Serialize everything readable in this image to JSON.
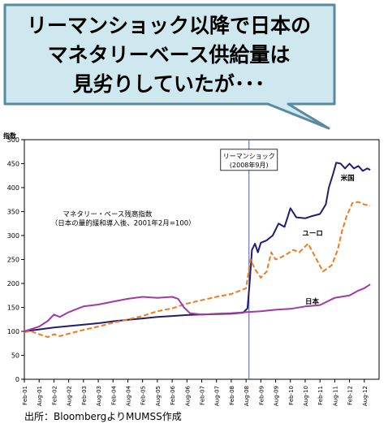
{
  "headline": {
    "line1": "リーマンショック以降で日本の",
    "line2": "マネタリーベース供給量は",
    "line3": "見劣りしていたが･･･"
  },
  "source": "出所：BloombergよりMUMSS作成",
  "colors": {
    "callout_fill": "#cfe7ef",
    "callout_stroke": "#5a8aa0",
    "us": "#1f1f6e",
    "euro": "#f27a1a",
    "japan": "#a23aa6"
  },
  "chart_data": {
    "type": "line",
    "ylabel": "指数",
    "ylim": [
      0,
      500
    ],
    "yticks": [
      0,
      50,
      100,
      150,
      200,
      250,
      300,
      350,
      400,
      450,
      500
    ],
    "x_tick_labels": [
      "Feb-01",
      "Aug-01",
      "Feb-02",
      "Aug-02",
      "Feb-03",
      "Aug-03",
      "Feb-04",
      "Aug-04",
      "Feb-05",
      "Aug-05",
      "Feb-06",
      "Aug-06",
      "Feb-07",
      "Aug-07",
      "Feb-08",
      "Aug-08",
      "Feb-09",
      "Aug-09",
      "Feb-10",
      "Aug-10",
      "Feb-11",
      "Aug-11",
      "Feb-12",
      "Aug-12"
    ],
    "annotation_title": "マネタリー・ベース残高指数",
    "annotation_subtitle": "（日本の量的緩和導入後、2001年2月=100）",
    "event": {
      "label_line1": "リーマンショック",
      "label_line2": "(2008年9月)",
      "x": 7.6
    },
    "series": [
      {
        "name": "米国",
        "style": "solid",
        "color": "#1f1f6e",
        "points": [
          [
            0,
            100
          ],
          [
            0.5,
            104
          ],
          [
            1,
            108
          ],
          [
            1.5,
            111
          ],
          [
            2,
            114
          ],
          [
            2.5,
            117
          ],
          [
            3,
            121
          ],
          [
            3.5,
            124
          ],
          [
            4,
            127
          ],
          [
            4.5,
            130
          ],
          [
            5,
            132
          ],
          [
            5.5,
            134
          ],
          [
            6,
            135
          ],
          [
            6.5,
            136
          ],
          [
            7,
            137
          ],
          [
            7.4,
            139
          ],
          [
            7.55,
            148
          ],
          [
            7.62,
            200
          ],
          [
            7.7,
            270
          ],
          [
            7.8,
            283
          ],
          [
            7.9,
            265
          ],
          [
            8,
            285
          ],
          [
            8.2,
            290
          ],
          [
            8.4,
            300
          ],
          [
            8.6,
            325
          ],
          [
            8.8,
            318
          ],
          [
            9,
            357
          ],
          [
            9.2,
            338
          ],
          [
            9.5,
            336
          ],
          [
            9.7,
            340
          ],
          [
            10,
            345
          ],
          [
            10.2,
            365
          ],
          [
            10.3,
            400
          ],
          [
            10.45,
            430
          ],
          [
            10.55,
            452
          ],
          [
            10.7,
            450
          ],
          [
            10.85,
            440
          ],
          [
            11,
            450
          ],
          [
            11.15,
            440
          ],
          [
            11.3,
            445
          ],
          [
            11.45,
            435
          ],
          [
            11.6,
            440
          ],
          [
            11.7,
            437
          ]
        ]
      },
      {
        "name": "ユーロ",
        "style": "dashed",
        "color": "#f27a1a",
        "points": [
          [
            0,
            98
          ],
          [
            0.2,
            101
          ],
          [
            0.4,
            96
          ],
          [
            0.6,
            92
          ],
          [
            0.8,
            88
          ],
          [
            1,
            94
          ],
          [
            1.2,
            90
          ],
          [
            1.5,
            95
          ],
          [
            2,
            103
          ],
          [
            2.5,
            110
          ],
          [
            3,
            118
          ],
          [
            3.5,
            125
          ],
          [
            4,
            132
          ],
          [
            4.5,
            142
          ],
          [
            5,
            148
          ],
          [
            5.5,
            158
          ],
          [
            6,
            165
          ],
          [
            6.5,
            172
          ],
          [
            7,
            178
          ],
          [
            7.3,
            185
          ],
          [
            7.5,
            190
          ],
          [
            7.65,
            250
          ],
          [
            7.8,
            230
          ],
          [
            8,
            212
          ],
          [
            8.2,
            225
          ],
          [
            8.35,
            265
          ],
          [
            8.5,
            250
          ],
          [
            8.7,
            255
          ],
          [
            8.9,
            262
          ],
          [
            9.1,
            270
          ],
          [
            9.3,
            265
          ],
          [
            9.6,
            283
          ],
          [
            9.8,
            260
          ],
          [
            10.1,
            225
          ],
          [
            10.4,
            238
          ],
          [
            10.6,
            270
          ],
          [
            10.75,
            310
          ],
          [
            10.9,
            340
          ],
          [
            11.1,
            368
          ],
          [
            11.3,
            370
          ],
          [
            11.5,
            365
          ],
          [
            11.7,
            362
          ]
        ]
      },
      {
        "name": "日本",
        "style": "solid",
        "color": "#a23aa6",
        "points": [
          [
            0,
            100
          ],
          [
            0.5,
            110
          ],
          [
            0.8,
            122
          ],
          [
            1,
            135
          ],
          [
            1.2,
            130
          ],
          [
            1.5,
            140
          ],
          [
            2,
            152
          ],
          [
            2.5,
            156
          ],
          [
            3,
            162
          ],
          [
            3.5,
            168
          ],
          [
            4,
            172
          ],
          [
            4.5,
            170
          ],
          [
            5,
            172
          ],
          [
            5.2,
            168
          ],
          [
            5.4,
            150
          ],
          [
            5.6,
            138
          ],
          [
            6,
            135
          ],
          [
            6.5,
            137
          ],
          [
            7,
            138
          ],
          [
            7.5,
            140
          ],
          [
            8,
            142
          ],
          [
            8.5,
            145
          ],
          [
            9,
            147
          ],
          [
            9.5,
            152
          ],
          [
            10,
            155
          ],
          [
            10.5,
            170
          ],
          [
            11,
            175
          ],
          [
            11.3,
            185
          ],
          [
            11.5,
            190
          ],
          [
            11.7,
            198
          ]
        ]
      }
    ],
    "series_labels": [
      {
        "text": "米国",
        "x": 10.7,
        "y": 415
      },
      {
        "text": "ユーロ",
        "x": 9.4,
        "y": 300
      },
      {
        "text": "日本",
        "x": 9.5,
        "y": 158
      }
    ]
  }
}
